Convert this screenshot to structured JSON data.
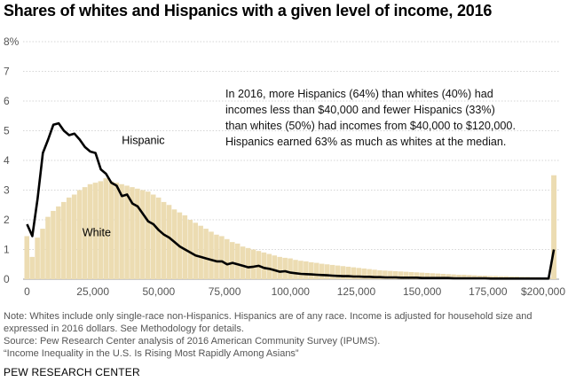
{
  "chart_data": {
    "type": "bar",
    "title": "Shares of whites and Hispanics with a given level of income, 2016",
    "xlabel": "",
    "ylabel": "",
    "xlim": [
      -1500,
      202000
    ],
    "ylim": [
      0,
      8
    ],
    "bin_width": 2000,
    "x_tick_labels": [
      "0",
      "25,000",
      "50,000",
      "75,000",
      "100,000",
      "125,000",
      "150,000",
      "175,000",
      "$200,000"
    ],
    "x_tick_values": [
      0,
      25000,
      50000,
      75000,
      100000,
      125000,
      150000,
      175000,
      200000
    ],
    "y_tick_labels": [
      "0",
      "1",
      "2",
      "3",
      "4",
      "5",
      "6",
      "7",
      "8%"
    ],
    "y_tick_values": [
      0,
      1,
      2,
      3,
      4,
      5,
      6,
      7,
      8
    ],
    "grid": true,
    "series": [
      {
        "name": "White",
        "kind": "bar",
        "color": "#ecdcb2",
        "x": [
          0,
          2000,
          4000,
          6000,
          8000,
          10000,
          12000,
          14000,
          16000,
          18000,
          20000,
          22000,
          24000,
          26000,
          28000,
          30000,
          32000,
          34000,
          36000,
          38000,
          40000,
          42000,
          44000,
          46000,
          48000,
          50000,
          52000,
          54000,
          56000,
          58000,
          60000,
          62000,
          64000,
          66000,
          68000,
          70000,
          72000,
          74000,
          76000,
          78000,
          80000,
          82000,
          84000,
          86000,
          88000,
          90000,
          92000,
          94000,
          96000,
          98000,
          100000,
          102000,
          104000,
          106000,
          108000,
          110000,
          112000,
          114000,
          116000,
          118000,
          120000,
          122000,
          124000,
          126000,
          128000,
          130000,
          132000,
          134000,
          136000,
          138000,
          140000,
          142000,
          144000,
          146000,
          148000,
          150000,
          152000,
          154000,
          156000,
          158000,
          160000,
          162000,
          164000,
          166000,
          168000,
          170000,
          172000,
          174000,
          176000,
          178000,
          180000,
          182000,
          184000,
          186000,
          188000,
          190000,
          192000,
          194000,
          196000,
          198000
        ],
        "values": [
          1.45,
          0.75,
          1.4,
          1.7,
          2.1,
          2.3,
          2.45,
          2.6,
          2.75,
          2.85,
          3.0,
          3.1,
          3.2,
          3.25,
          3.3,
          3.4,
          3.3,
          3.25,
          3.2,
          3.15,
          3.1,
          3.05,
          3.0,
          2.95,
          2.85,
          2.75,
          2.6,
          2.5,
          2.35,
          2.25,
          2.15,
          2.0,
          1.9,
          1.8,
          1.7,
          1.6,
          1.5,
          1.45,
          1.35,
          1.25,
          1.2,
          1.1,
          1.05,
          1.0,
          0.95,
          0.9,
          0.85,
          0.8,
          0.75,
          0.72,
          0.7,
          0.65,
          0.62,
          0.6,
          0.57,
          0.55,
          0.52,
          0.5,
          0.48,
          0.46,
          0.44,
          0.42,
          0.4,
          0.38,
          0.36,
          0.34,
          0.32,
          0.3,
          0.29,
          0.28,
          0.27,
          0.26,
          0.25,
          0.24,
          0.23,
          0.22,
          0.21,
          0.2,
          0.19,
          0.18,
          0.17,
          0.16,
          0.15,
          0.15,
          0.14,
          0.13,
          0.12,
          0.12,
          0.11,
          0.11,
          0.1,
          0.1,
          0.09,
          0.09,
          0.08,
          0.08,
          0.07,
          0.07,
          0.06,
          0.06
        ],
        "top_bin": {
          "x_label": "$200,000",
          "value": 3.5
        }
      },
      {
        "name": "Hispanic",
        "kind": "line",
        "color": "#000000",
        "x": [
          0,
          2000,
          4000,
          6000,
          8000,
          10000,
          12000,
          14000,
          16000,
          18000,
          20000,
          22000,
          24000,
          26000,
          28000,
          30000,
          32000,
          34000,
          36000,
          38000,
          40000,
          42000,
          44000,
          46000,
          48000,
          50000,
          52000,
          54000,
          56000,
          58000,
          60000,
          62000,
          64000,
          66000,
          68000,
          70000,
          72000,
          74000,
          76000,
          78000,
          80000,
          82000,
          84000,
          86000,
          88000,
          90000,
          92000,
          94000,
          96000,
          98000,
          100000,
          102000,
          104000,
          106000,
          108000,
          110000,
          112000,
          114000,
          116000,
          118000,
          120000,
          122000,
          124000,
          126000,
          128000,
          130000,
          132000,
          134000,
          136000,
          138000,
          140000,
          142000,
          144000,
          146000,
          148000,
          150000,
          152000,
          154000,
          156000,
          158000,
          160000,
          162000,
          164000,
          166000,
          168000,
          170000,
          172000,
          174000,
          176000,
          178000,
          180000,
          182000,
          184000,
          186000,
          188000,
          190000,
          192000,
          194000,
          196000,
          198000,
          200000
        ],
        "values": [
          1.85,
          1.45,
          2.7,
          4.25,
          4.7,
          5.2,
          5.25,
          5.0,
          4.85,
          4.9,
          4.7,
          4.45,
          4.3,
          4.25,
          3.7,
          3.55,
          3.25,
          3.15,
          2.8,
          2.85,
          2.55,
          2.45,
          2.2,
          1.95,
          1.85,
          1.65,
          1.5,
          1.4,
          1.25,
          1.1,
          1.0,
          0.9,
          0.8,
          0.75,
          0.7,
          0.65,
          0.6,
          0.6,
          0.5,
          0.55,
          0.5,
          0.45,
          0.4,
          0.42,
          0.45,
          0.38,
          0.35,
          0.3,
          0.25,
          0.27,
          0.22,
          0.2,
          0.18,
          0.17,
          0.16,
          0.15,
          0.14,
          0.13,
          0.12,
          0.11,
          0.1,
          0.1,
          0.09,
          0.09,
          0.08,
          0.08,
          0.07,
          0.07,
          0.06,
          0.06,
          0.06,
          0.05,
          0.05,
          0.05,
          0.05,
          0.04,
          0.04,
          0.04,
          0.04,
          0.04,
          0.04,
          0.03,
          0.03,
          0.03,
          0.03,
          0.03,
          0.03,
          0.03,
          0.02,
          0.02,
          0.02,
          0.02,
          0.02,
          0.02,
          0.02,
          0.02,
          0.02,
          0.02,
          0.02,
          0.02,
          1.0
        ]
      }
    ],
    "annotation": "In 2016, more Hispanics (64%) than whites (40%) had incomes less than $40,000 and fewer Hispanics (33%) than whites (50%) had incomes from $40,000 to $120,000. Hispanics earned 63% as much as whites at the median.",
    "series_labels": {
      "hispanic": "Hispanic",
      "white": "White"
    }
  },
  "notes": {
    "note": "Note: Whites include only single-race non-Hispanics. Hispanics are of any race. Income is adjusted for household size and expressed in 2016 dollars. See Methodology for details.",
    "source": "Source: Pew Research Center analysis of 2016 American Community Survey (IPUMS).",
    "report": "“Income Inequality in the U.S. Is Rising Most Rapidly Among Asians”"
  },
  "brand": "PEW RESEARCH CENTER"
}
